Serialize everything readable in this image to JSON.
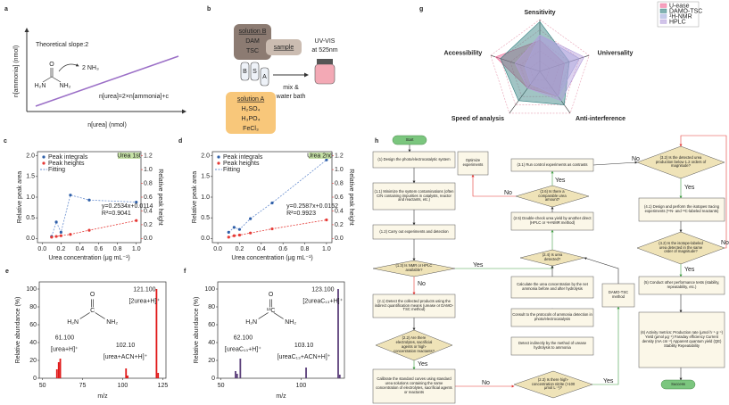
{
  "panel_a": {
    "label": "a",
    "title": "Theoretical slope:2",
    "product": "2 NH₃",
    "atoms": [
      "O",
      "H₂N",
      "NH₂"
    ],
    "equation": "n[urea]=2×n[ammonia]+c",
    "xlabel": "n[urea] (nmol)",
    "ylabel": "n[ammonia] (nmol)"
  },
  "panel_b": {
    "label": "b",
    "solution_b": [
      "solution B",
      "DAM",
      "TSC"
    ],
    "sample": "sample",
    "tubes": [
      "B",
      "S",
      "A"
    ],
    "solution_a": [
      "solution A",
      "H₂SO₄",
      "H₃PO₄",
      "FeCl₃"
    ],
    "detector": [
      "UV-VIS",
      "at 525nm"
    ],
    "step": [
      "mix &",
      "water bath"
    ]
  },
  "chart_data": [
    {
      "type": "scatter",
      "label": "c",
      "badge": "Urea 1st",
      "xlabel": "Urea concentration (μg mL⁻¹)",
      "ylabel": "Relative peak area",
      "y2label": "Relative peak height",
      "x": [
        0.1,
        0.15,
        0.2,
        0.3,
        0.5,
        1.0
      ],
      "series": [
        {
          "name": "Peak integrals",
          "color": "#2f5fa8",
          "values": [
            0.05,
            0.4,
            0.15,
            1.05,
            0.93,
            0.88
          ]
        },
        {
          "name": "Peak heights",
          "color": "#e53935",
          "axis": "y2",
          "values": [
            0.02,
            0.03,
            0.04,
            0.06,
            0.12,
            0.26
          ]
        }
      ],
      "fit_label": "Fitting",
      "fit_color": "#6a8fd0",
      "annotations": [
        "y=0.2534x+0.0114",
        "R²=0.9041"
      ],
      "xlim": [
        -0.05,
        1.05
      ],
      "xticks": [
        {
          "value": 0,
          "label": "0.0"
        },
        0.2,
        0.4,
        0.6,
        0.8,
        {
          "value": 1,
          "label": "1.0"
        }
      ],
      "ylim": [
        -0.1,
        2.1
      ],
      "yticks": [
        {
          "value": 0,
          "label": "0.0"
        },
        0.5,
        {
          "value": 1,
          "label": "1.0"
        },
        1.5,
        {
          "value": 2,
          "label": "2.0"
        }
      ],
      "y2lim": [
        -0.06,
        1.26
      ],
      "y2ticks": [
        {
          "value": 0,
          "label": "0.0"
        },
        0.2,
        0.4,
        0.6,
        0.8,
        {
          "value": 1,
          "label": "1.0"
        },
        1.2
      ]
    },
    {
      "type": "scatter",
      "label": "d",
      "badge": "Urea 2nd",
      "xlabel": "Urea concentration (μg mL⁻¹)",
      "ylabel": "Relative peak area",
      "y2label": "Relative peak height",
      "x": [
        0.1,
        0.15,
        0.2,
        0.3,
        0.5,
        1.0
      ],
      "series": [
        {
          "name": "Peak integrals",
          "color": "#2f5fa8",
          "values": [
            0.15,
            0.27,
            0.22,
            0.48,
            0.86,
            1.9
          ]
        },
        {
          "name": "Peak heights",
          "color": "#e53935",
          "axis": "y2",
          "values": [
            0.02,
            0.04,
            0.05,
            0.08,
            0.14,
            0.27
          ]
        }
      ],
      "fit_label": "Fitting",
      "fit_color": "#6a8fd0",
      "annotations": [
        "y=0.2587x+0.0152",
        "R²=0.9923"
      ],
      "xlim": [
        -0.05,
        1.05
      ],
      "xticks": [
        {
          "value": 0,
          "label": "0.0"
        },
        0.2,
        0.4,
        0.6,
        0.8,
        {
          "value": 1,
          "label": "1.0"
        }
      ],
      "ylim": [
        -0.1,
        2.1
      ],
      "yticks": [
        {
          "value": 0,
          "label": "0.0"
        },
        0.5,
        {
          "value": 1,
          "label": "1.0"
        },
        1.5,
        {
          "value": 2,
          "label": "2.0"
        }
      ],
      "y2lim": [
        -0.06,
        1.26
      ],
      "y2ticks": [
        {
          "value": 0,
          "label": "0.0"
        },
        0.2,
        0.4,
        0.6,
        0.8,
        {
          "value": 1,
          "label": "1.0"
        },
        1.2
      ]
    },
    {
      "type": "stick",
      "label": "e",
      "xlabel": "m/z",
      "ylabel": "Relative abundance (%)",
      "color": "#e01818",
      "x": [
        59.0,
        60.1,
        61.1,
        102.1,
        103.1,
        121.1,
        122.1
      ],
      "values": [
        10,
        18,
        22,
        11,
        3,
        100,
        6
      ],
      "xlim": [
        48,
        127
      ],
      "xticks": [
        50,
        75,
        100,
        125
      ],
      "ylim": [
        0,
        108
      ],
      "yticks": [
        0,
        20,
        40,
        60,
        80,
        100
      ],
      "annotations": [
        "121.100",
        "[2urea+H]⁺",
        "61.100",
        "[urea+H]⁺",
        "102.10",
        "[urea+ACN+H]⁺"
      ],
      "structure": [
        "O",
        "C",
        "H₂N",
        "NH₂"
      ]
    },
    {
      "type": "stick",
      "label": "f",
      "xlabel": "m/z",
      "ylabel": "Relative abundance (%)",
      "color": "#5b3f7a",
      "x": [
        59.1,
        60.1,
        62.1,
        103.1,
        123.1,
        124.1
      ],
      "values": [
        8,
        5,
        22,
        12,
        100,
        4
      ],
      "xlim": [
        48,
        127
      ],
      "xticks": [
        50,
        100
      ],
      "ylim": [
        0,
        108
      ],
      "yticks": [
        0,
        20,
        40,
        60,
        80,
        100
      ],
      "annotations": [
        "123.100",
        "[2ureaC₁₃+H]⁺",
        "62.100",
        "[ureaC₁₃+H]⁺",
        "103.10",
        "[ureaC₁₃+ACN+H]⁺"
      ],
      "structure": [
        "O",
        "¹³C",
        "H₂N",
        "NH₂"
      ]
    },
    {
      "type": "radar",
      "label": "g",
      "axes": [
        "Sensitivity",
        "Universality",
        "Anti-interference",
        "Speed of analysis",
        "Accessibility"
      ],
      "rlim": [
        0,
        5
      ],
      "rticks": [
        1,
        2,
        3,
        4,
        5
      ],
      "series": [
        {
          "name": "U-ease",
          "color": "#f06292",
          "values": [
            3,
            2.5,
            3,
            2,
            4.5
          ]
        },
        {
          "name": "DAMO-TSC",
          "color": "#2e7d7d",
          "values": [
            4.8,
            3,
            4,
            3.5,
            4
          ]
        },
        {
          "name": "¹H-NMR",
          "color": "#9fa8da",
          "values": [
            3.5,
            4,
            3,
            1.5,
            1.5
          ]
        },
        {
          "name": "HPLC",
          "color": "#b39ddb",
          "values": [
            3.5,
            4.5,
            3.5,
            2,
            2.5
          ]
        }
      ]
    }
  ],
  "flowchart": {
    "label": "h",
    "nodes": [
      "Start",
      "(1) Design the photo/electrocatalytic system",
      "(1.1) Minimize the system contaminations (often C/N containing impurities in catalysts, reactor and reactants, etc.)",
      "(1.2) Carry out experiments and detection",
      "(1.3) Is NMR or HPLC available?",
      "(2.1) Detect the collected products using the indirect quantification means (urease or DAMO-TSC method)",
      "(2.2) Are there electrolytes, sacrificial agents or high-concentration reactants?",
      "Calibrate the standard curves using standard urea solutions containing the same concentration of electrolytes, sacrificial agents or reactants",
      "Optimize experiments",
      "(3.1) Run control experiments as contrasts",
      "(2.6) Is there a comparable urea amount?",
      "(2.5) Double-check urea yield by another direct (HPLC or ¹H-NMR method)",
      "(2.4) Is urea detected?",
      "Calculate the urea concentration by the net ammonia before and after hydrolysis",
      "Consult to the protocols of ammonia detection in photo/electrocatalysis",
      "Detect indirectly by the method of urease hydrolysis to ammonia",
      "(2.3) Is there high-concentration nitrite (>100 μmol L⁻¹)?",
      "DAMO-TSC method",
      "(3.2) Is the detected urea production below 1.2 orders of magnitude?",
      "(4.1) Design and perform the isotopes tracing experiments (¹⁵N- and ¹³C-labeled reactants)",
      "(4.2) Is the isotope-labeled urea detected in the same order of magnitude?",
      "(5) Conduct other performance tests (stability, repeatability, etc.)",
      "(6) Activity metrics: Production rate (μmol h⁻¹ g⁻¹) Yield (μmol μg⁻¹) Faraday efficiency Current density (mA cm⁻²) Apparent quantum yield (QE) Stability Repeatability",
      "Success"
    ],
    "edge_labels": [
      "Yes",
      "No",
      "Yes",
      "No",
      "Yes",
      "No",
      "Yes",
      "No",
      "Yes",
      "Yes",
      "No"
    ]
  }
}
